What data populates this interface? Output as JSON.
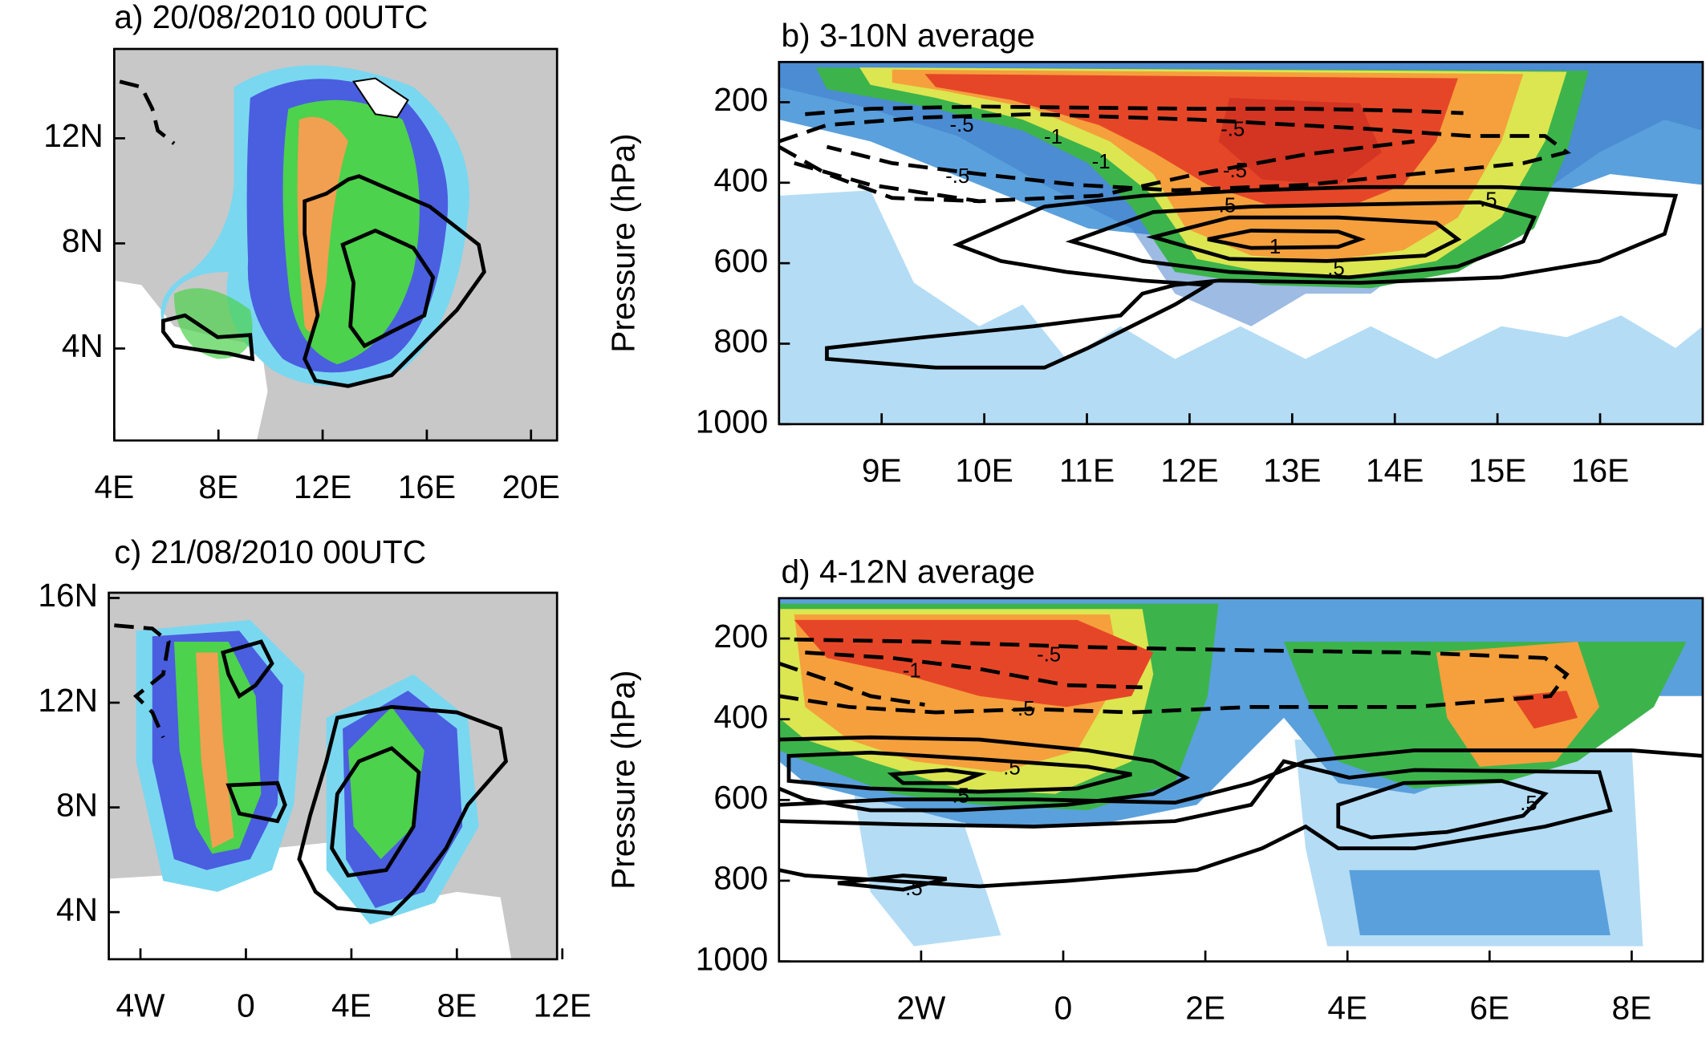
{
  "chart_data": [
    {
      "type": "contour",
      "title": "a) 20/08/2010 00UTC",
      "xlim": [
        4,
        21
      ],
      "ylim": [
        0.5,
        15.4
      ],
      "xticks": [
        {
          "value": 4,
          "label": "4E"
        },
        {
          "value": 8,
          "label": "8E"
        },
        {
          "value": 12,
          "label": "12E"
        },
        {
          "value": 16,
          "label": "16E"
        },
        {
          "value": 20,
          "label": "20E"
        }
      ],
      "yticks": [
        {
          "value": 4,
          "label": "4N"
        },
        {
          "value": 8,
          "label": "8N"
        },
        {
          "value": 12,
          "label": "12N"
        }
      ]
    },
    {
      "type": "contour",
      "title": "b) 3-10N average",
      "y_label": "Pressure (hPa)",
      "xlim": [
        8,
        17
      ],
      "ylim": [
        1000,
        100
      ],
      "xticks": [
        {
          "value": 9,
          "label": "9E"
        },
        {
          "value": 10,
          "label": "10E"
        },
        {
          "value": 11,
          "label": "11E"
        },
        {
          "value": 12,
          "label": "12E"
        },
        {
          "value": 13,
          "label": "13E"
        },
        {
          "value": 14,
          "label": "14E"
        },
        {
          "value": 15,
          "label": "15E"
        },
        {
          "value": 16,
          "label": "16E"
        }
      ],
      "yticks": [
        200,
        400,
        600,
        800,
        1000
      ],
      "contour_labels": [
        "-.5",
        "-1",
        "-.5",
        "-1",
        "-.5",
        "-.5",
        ".5",
        ".5",
        "1",
        ".5"
      ]
    },
    {
      "type": "contour",
      "title": "c) 21/08/2010 00UTC",
      "xlim": [
        -5.2,
        11.8
      ],
      "ylim": [
        2.2,
        16.2
      ],
      "xticks": [
        {
          "value": -4,
          "label": "4W"
        },
        0,
        {
          "value": 4,
          "label": "4E"
        },
        {
          "value": 8,
          "label": "8E"
        },
        {
          "value": 12,
          "label": "12E"
        }
      ],
      "yticks": [
        {
          "value": 4,
          "label": "4N"
        },
        {
          "value": 8,
          "label": "8N"
        },
        {
          "value": 12,
          "label": "12N"
        },
        {
          "value": 16,
          "label": "16N"
        }
      ]
    },
    {
      "type": "contour",
      "title": "d) 4-12N average",
      "y_label": "Pressure (hPa)",
      "xlim": [
        -4,
        9
      ],
      "ylim": [
        1000,
        100
      ],
      "xticks": [
        {
          "value": -2,
          "label": "2W"
        },
        0,
        {
          "value": 2,
          "label": "2E"
        },
        {
          "value": 4,
          "label": "4E"
        },
        {
          "value": 6,
          "label": "6E"
        },
        {
          "value": 8,
          "label": "8E"
        }
      ],
      "yticks": [
        200,
        400,
        600,
        800,
        1000
      ],
      "contour_labels": [
        "-.5",
        "-1",
        "-.5",
        ".5",
        ".5",
        ".5",
        ".5"
      ]
    }
  ]
}
